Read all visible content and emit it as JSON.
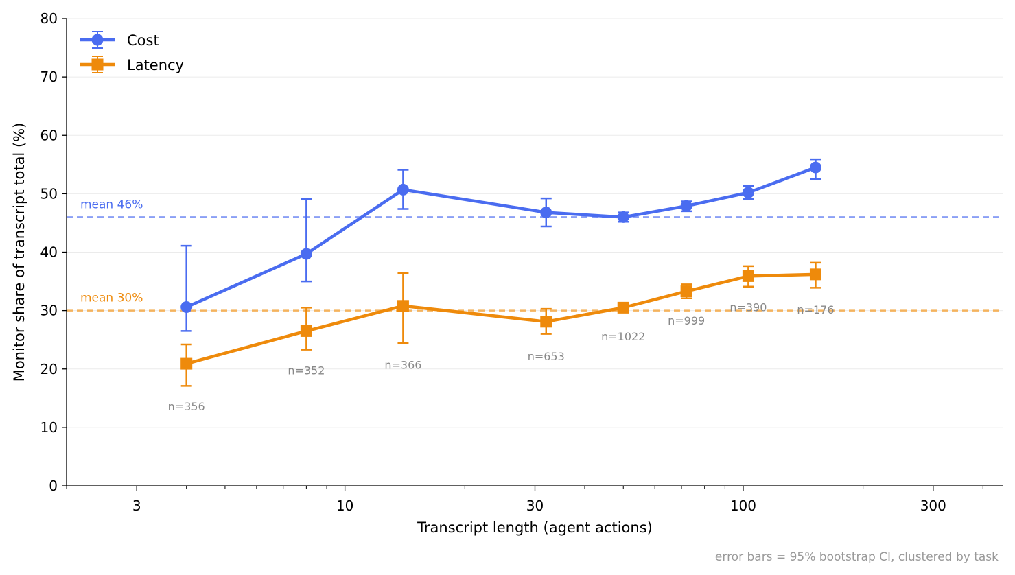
{
  "chart_data": {
    "type": "line",
    "title": "",
    "xlabel": "Transcript length (agent actions)",
    "ylabel": "Monitor share of transcript total (%)",
    "x_scale": "log",
    "xlim": [
      2,
      450
    ],
    "ylim": [
      0,
      80
    ],
    "x_ticks": [
      3,
      10,
      30,
      100,
      300
    ],
    "x_tick_labels": [
      "3",
      "10",
      "30",
      "100",
      "300"
    ],
    "y_ticks": [
      0,
      10,
      20,
      30,
      40,
      50,
      60,
      70,
      80
    ],
    "y_tick_labels": [
      "0",
      "10",
      "20",
      "30",
      "40",
      "50",
      "60",
      "70",
      "80"
    ],
    "grid": "horizontal",
    "legend_position": "top-left",
    "footnote": "error bars = 95% bootstrap CI, clustered by task",
    "series": [
      {
        "name": "Cost",
        "color": "#4a6cf0",
        "marker": "circle",
        "x": [
          4,
          8,
          14,
          32,
          50,
          72,
          103,
          152
        ],
        "y": [
          30.6,
          39.7,
          50.7,
          46.8,
          46.0,
          47.9,
          50.2,
          54.5
        ],
        "ci_low": [
          26.5,
          35.0,
          47.4,
          44.4,
          45.2,
          47.0,
          49.1,
          52.5
        ],
        "ci_high": [
          41.1,
          49.1,
          54.1,
          49.2,
          46.8,
          48.7,
          51.3,
          55.9
        ],
        "mean": 46,
        "mean_label": "mean 46%"
      },
      {
        "name": "Latency",
        "color": "#ee8a0b",
        "marker": "square",
        "x": [
          4,
          8,
          14,
          32,
          50,
          72,
          103,
          152
        ],
        "y": [
          20.9,
          26.5,
          30.8,
          28.1,
          30.5,
          33.3,
          35.9,
          36.2
        ],
        "ci_low": [
          17.1,
          23.3,
          24.4,
          26.0,
          29.8,
          32.1,
          34.1,
          33.9
        ],
        "ci_high": [
          24.2,
          30.5,
          36.4,
          30.3,
          31.2,
          34.5,
          37.6,
          38.2
        ],
        "mean": 30,
        "mean_label": "mean 30%"
      }
    ],
    "annotations": [
      {
        "x": 4,
        "y": 13.5,
        "text": "n=356"
      },
      {
        "x": 8,
        "y": 19.7,
        "text": "n=352"
      },
      {
        "x": 14,
        "y": 20.6,
        "text": "n=366"
      },
      {
        "x": 32,
        "y": 22.1,
        "text": "n=653"
      },
      {
        "x": 50,
        "y": 25.5,
        "text": "n=1022"
      },
      {
        "x": 72,
        "y": 28.2,
        "text": "n=999"
      },
      {
        "x": 103,
        "y": 30.5,
        "text": "n=390"
      },
      {
        "x": 152,
        "y": 30.1,
        "text": "n=176"
      }
    ]
  }
}
